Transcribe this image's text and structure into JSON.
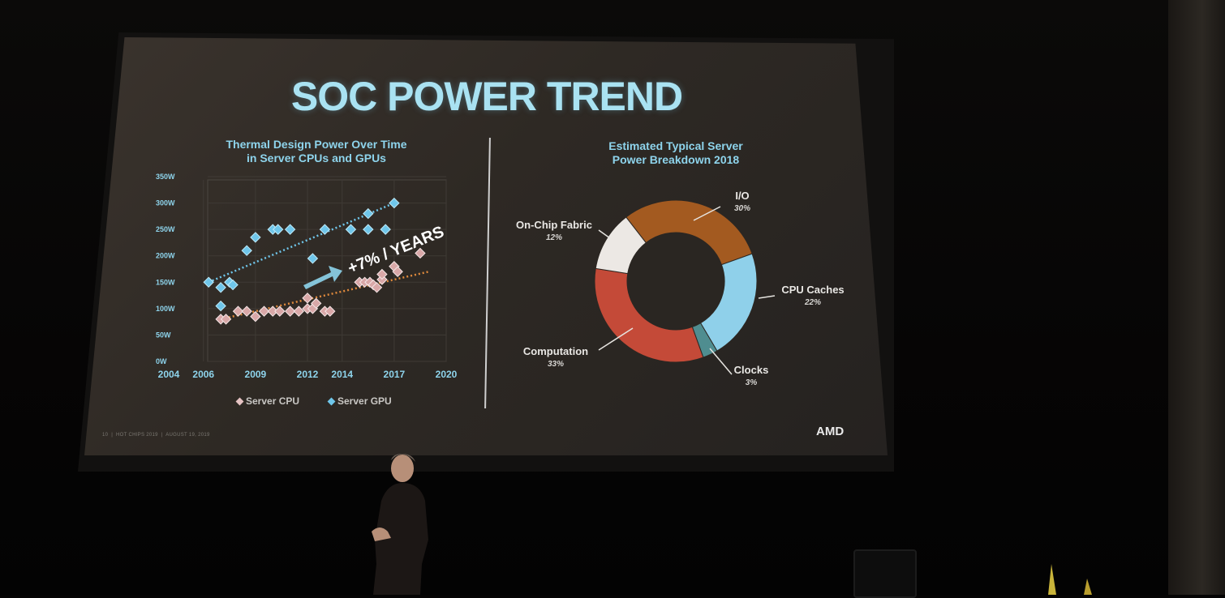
{
  "slide": {
    "title": "SOC POWER TREND",
    "footer": {
      "page": "10",
      "event": "HOT CHIPS 2019",
      "date": "AUGUST 19, 2019"
    },
    "logo": "AMD"
  },
  "colors": {
    "cpu": "#d9a8a8",
    "gpu": "#6fc6ea",
    "cpu_trend": "#e08a3c",
    "gpu_trend": "#6fc6ea",
    "arrow": "#8ed4ec"
  },
  "chart_data": [
    {
      "type": "scatter",
      "title": "Thermal Design Power Over Time\nin Server CPUs and GPUs",
      "xlim": [
        2004,
        2020
      ],
      "ylim": [
        0,
        350
      ],
      "x_ticks": [
        "2004",
        "2006",
        "2009",
        "2012",
        "2014",
        "2017",
        "2020"
      ],
      "x_tick_values": [
        2004,
        2006,
        2009,
        2012,
        2014,
        2017,
        2020
      ],
      "y_ticks": [
        "0W",
        "50W",
        "100W",
        "150W",
        "200W",
        "250W",
        "300W",
        "350W"
      ],
      "y_tick_values": [
        0,
        50,
        100,
        150,
        200,
        250,
        300,
        350
      ],
      "grid": true,
      "legend": "bottom",
      "annotation": "+7% / YEARS",
      "series": [
        {
          "name": "Server CPU",
          "points": [
            [
              2007,
              80
            ],
            [
              2007.3,
              80
            ],
            [
              2008,
              95
            ],
            [
              2008.5,
              95
            ],
            [
              2009,
              85
            ],
            [
              2009.5,
              95
            ],
            [
              2010,
              95
            ],
            [
              2010.4,
              95
            ],
            [
              2011,
              95
            ],
            [
              2011.5,
              95
            ],
            [
              2012,
              100
            ],
            [
              2012,
              120
            ],
            [
              2012.3,
              100
            ],
            [
              2012.5,
              110
            ],
            [
              2013,
              95
            ],
            [
              2013.3,
              95
            ],
            [
              2015,
              150
            ],
            [
              2015.3,
              150
            ],
            [
              2015.6,
              150
            ],
            [
              2015.8,
              145
            ],
            [
              2016,
              140
            ],
            [
              2016.3,
              155
            ],
            [
              2016.3,
              165
            ],
            [
              2017,
              180
            ],
            [
              2017.2,
              170
            ],
            [
              2018.5,
              205
            ]
          ]
        },
        {
          "name": "Server GPU",
          "points": [
            [
              2006.3,
              150
            ],
            [
              2007,
              140
            ],
            [
              2007.5,
              150
            ],
            [
              2007.7,
              145
            ],
            [
              2007,
              105
            ],
            [
              2008.5,
              210
            ],
            [
              2009,
              235
            ],
            [
              2010,
              250
            ],
            [
              2010.3,
              250
            ],
            [
              2011,
              250
            ],
            [
              2012.3,
              195
            ],
            [
              2013,
              250
            ],
            [
              2014.5,
              250
            ],
            [
              2015.5,
              280
            ],
            [
              2015.5,
              250
            ],
            [
              2016.5,
              250
            ],
            [
              2017,
              300
            ]
          ]
        }
      ],
      "trend_lines": [
        {
          "series": "Server CPU",
          "from": [
            2007,
            80
          ],
          "to": [
            2019,
            170
          ]
        },
        {
          "series": "Server GPU",
          "from": [
            2006.3,
            150
          ],
          "to": [
            2017,
            300
          ]
        }
      ]
    },
    {
      "type": "pie",
      "title": "Estimated Typical Server\nPower Breakdown 2018",
      "donut": true,
      "slices": [
        {
          "label": "I/O",
          "value": 30,
          "display": "30%",
          "color": "#a35a20"
        },
        {
          "label": "CPU Caches",
          "value": 22,
          "display": "22%",
          "color": "#8fd0ea"
        },
        {
          "label": "Clocks",
          "value": 3,
          "display": "3%",
          "color": "#4f8d90"
        },
        {
          "label": "Computation",
          "value": 33,
          "display": "33%",
          "color": "#c44a38"
        },
        {
          "label": "On-Chip Fabric",
          "value": 12,
          "display": "12%",
          "color": "#ece8e4"
        }
      ]
    }
  ]
}
